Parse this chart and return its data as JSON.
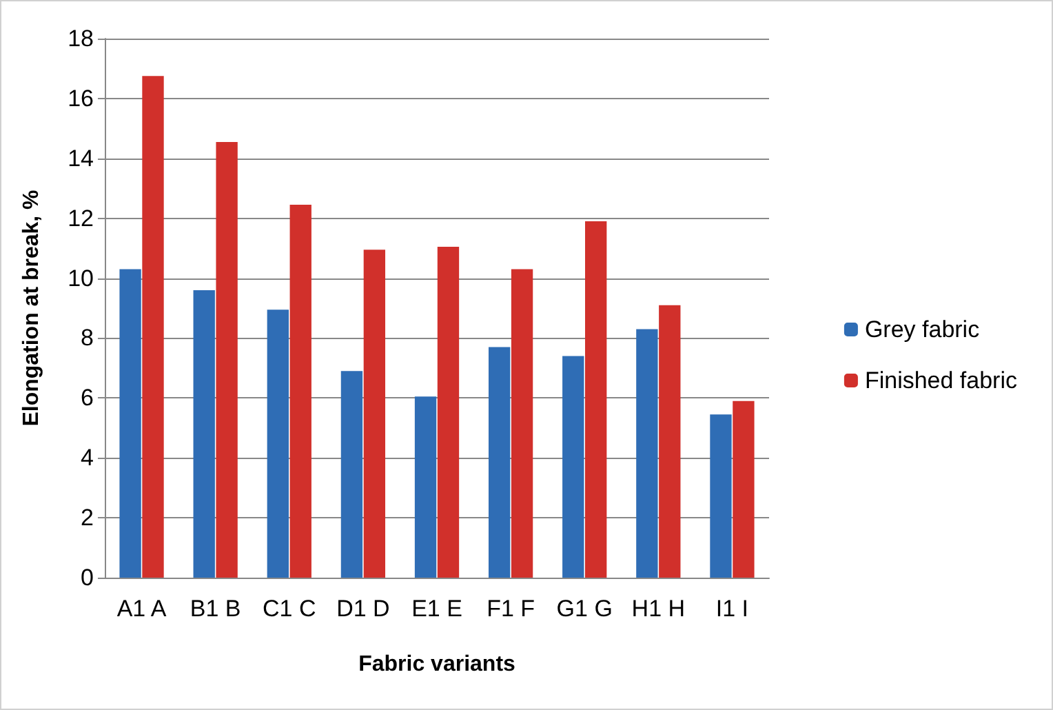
{
  "chart_data": {
    "type": "bar",
    "xlabel": "Fabric variants",
    "ylabel": "Elongation at break, %",
    "categories": [
      "A1 A",
      "B1 B",
      "C1 C",
      "D1 D",
      "E1 E",
      "F1 F",
      "G1 G",
      "H1 H",
      "I1 I"
    ],
    "series": [
      {
        "name": "Grey fabric",
        "color": "#2f6db5",
        "values": [
          10.3,
          9.6,
          8.95,
          6.9,
          6.05,
          7.7,
          7.4,
          8.3,
          5.45
        ]
      },
      {
        "name": "Finished fabric",
        "color": "#d1302b",
        "values": [
          16.75,
          14.55,
          12.45,
          10.95,
          11.05,
          10.3,
          11.9,
          9.1,
          5.9
        ]
      }
    ],
    "ylim": [
      0,
      18
    ],
    "yticks": [
      0,
      2,
      4,
      6,
      8,
      10,
      12,
      14,
      16,
      18
    ],
    "grid": "y",
    "legend": "right"
  }
}
